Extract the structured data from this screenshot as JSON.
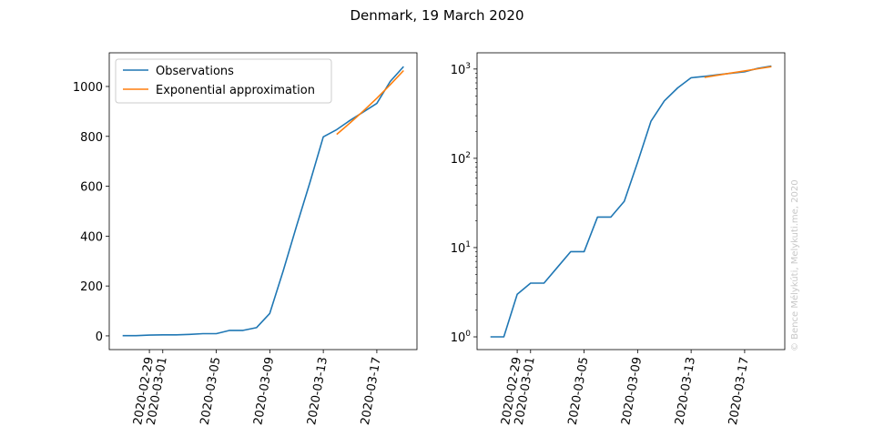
{
  "figure": {
    "title": "Denmark, 19 March 2020",
    "credit": "© Bence Mélykúti, Melykuti.me, 2020"
  },
  "colors": {
    "observations": "#1f77b4",
    "approximation": "#ff7f0e"
  },
  "chart_data": [
    {
      "type": "line",
      "yscale": "linear",
      "xlabel": "",
      "ylabel": "",
      "xlim": [
        "2020-02-26",
        "2020-03-20"
      ],
      "ylim": [
        -55,
        1135
      ],
      "x_ticks": [
        "2020-02-29",
        "2020-03-01",
        "2020-03-05",
        "2020-03-09",
        "2020-03-13",
        "2020-03-17"
      ],
      "y_ticks": [
        {
          "value": 0,
          "label": "0"
        },
        {
          "value": 200,
          "label": "200"
        },
        {
          "value": 400,
          "label": "400"
        },
        {
          "value": 600,
          "label": "600"
        },
        {
          "value": 800,
          "label": "800"
        },
        {
          "value": 1000,
          "label": "1000"
        }
      ],
      "legend": {
        "position": "upper-left"
      },
      "series": [
        {
          "name": "Observations",
          "color": "#1f77b4",
          "x": [
            "2020-02-27",
            "2020-02-28",
            "2020-02-29",
            "2020-03-01",
            "2020-03-02",
            "2020-03-03",
            "2020-03-04",
            "2020-03-05",
            "2020-03-06",
            "2020-03-07",
            "2020-03-08",
            "2020-03-09",
            "2020-03-10",
            "2020-03-11",
            "2020-03-12",
            "2020-03-13",
            "2020-03-14",
            "2020-03-15",
            "2020-03-16",
            "2020-03-17",
            "2020-03-18",
            "2020-03-19"
          ],
          "y": [
            1,
            1,
            3,
            4,
            4,
            6,
            9,
            9,
            22,
            22,
            33,
            90,
            260,
            440,
            615,
            798,
            827,
            864,
            898,
            932,
            1020,
            1080
          ]
        },
        {
          "name": "Exponential approximation",
          "color": "#ff7f0e",
          "x": [
            "2020-03-14",
            "2020-03-15",
            "2020-03-16",
            "2020-03-17",
            "2020-03-18",
            "2020-03-19"
          ],
          "y": [
            808,
            854,
            902,
            953,
            1007,
            1064
          ]
        }
      ]
    },
    {
      "type": "line",
      "yscale": "log",
      "xlabel": "",
      "ylabel": "",
      "xlim": [
        "2020-02-26",
        "2020-03-20"
      ],
      "ylim": [
        0.72,
        1520
      ],
      "x_ticks": [
        "2020-02-29",
        "2020-03-01",
        "2020-03-05",
        "2020-03-09",
        "2020-03-13",
        "2020-03-17"
      ],
      "y_ticks": [
        {
          "value": 1,
          "base": "10",
          "exp": "0"
        },
        {
          "value": 10,
          "base": "10",
          "exp": "1"
        },
        {
          "value": 100,
          "base": "10",
          "exp": "2"
        },
        {
          "value": 1000,
          "base": "10",
          "exp": "3"
        }
      ],
      "series": [
        {
          "name": "Observations",
          "color": "#1f77b4",
          "x": [
            "2020-02-27",
            "2020-02-28",
            "2020-02-29",
            "2020-03-01",
            "2020-03-02",
            "2020-03-03",
            "2020-03-04",
            "2020-03-05",
            "2020-03-06",
            "2020-03-07",
            "2020-03-08",
            "2020-03-09",
            "2020-03-10",
            "2020-03-11",
            "2020-03-12",
            "2020-03-13",
            "2020-03-14",
            "2020-03-15",
            "2020-03-16",
            "2020-03-17",
            "2020-03-18",
            "2020-03-19"
          ],
          "y": [
            1,
            1,
            3,
            4,
            4,
            6,
            9,
            9,
            22,
            22,
            33,
            90,
            260,
            440,
            615,
            798,
            827,
            864,
            898,
            932,
            1020,
            1080
          ]
        },
        {
          "name": "Exponential approximation",
          "color": "#ff7f0e",
          "x": [
            "2020-03-14",
            "2020-03-15",
            "2020-03-16",
            "2020-03-17",
            "2020-03-18",
            "2020-03-19"
          ],
          "y": [
            808,
            854,
            902,
            953,
            1007,
            1064
          ]
        }
      ]
    }
  ]
}
